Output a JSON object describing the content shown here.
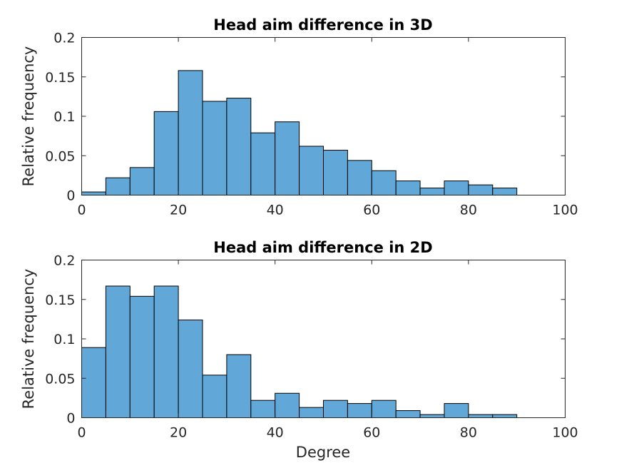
{
  "chart_data": [
    {
      "type": "bar",
      "title": "Head aim difference in 3D",
      "xlabel": "",
      "ylabel": "Relative frequency",
      "xlim": [
        0,
        100
      ],
      "ylim": [
        0,
        0.2
      ],
      "xticks": [
        "0",
        "20",
        "40",
        "60",
        "80",
        "100"
      ],
      "yticks": [
        "0",
        "0.05",
        "0.1",
        "0.15",
        "0.2"
      ],
      "bin_width": 5,
      "bins_start": [
        0,
        5,
        10,
        15,
        20,
        25,
        30,
        35,
        40,
        45,
        50,
        55,
        60,
        65,
        70,
        75,
        80,
        85
      ],
      "values": [
        0.004,
        0.022,
        0.035,
        0.106,
        0.158,
        0.119,
        0.123,
        0.079,
        0.093,
        0.062,
        0.057,
        0.044,
        0.031,
        0.018,
        0.009,
        0.018,
        0.013,
        0.009
      ],
      "grid": false
    },
    {
      "type": "bar",
      "title": "Head aim difference in 2D",
      "xlabel": "Degree",
      "ylabel": "Relative frequency",
      "xlim": [
        0,
        100
      ],
      "ylim": [
        0,
        0.2
      ],
      "xticks": [
        "0",
        "20",
        "40",
        "60",
        "80",
        "100"
      ],
      "yticks": [
        "0",
        "0.05",
        "0.1",
        "0.15",
        "0.2"
      ],
      "bin_width": 5,
      "bins_start": [
        0,
        5,
        10,
        15,
        20,
        25,
        30,
        35,
        40,
        45,
        50,
        55,
        60,
        65,
        70,
        75,
        80,
        85
      ],
      "values": [
        0.089,
        0.167,
        0.154,
        0.167,
        0.124,
        0.054,
        0.08,
        0.022,
        0.031,
        0.013,
        0.022,
        0.018,
        0.022,
        0.009,
        0.004,
        0.018,
        0.004,
        0.004
      ],
      "grid": false
    }
  ],
  "colors": {
    "bar_fill": "#61a8d9",
    "bar_edge": "#000000",
    "axis": "#262626"
  }
}
